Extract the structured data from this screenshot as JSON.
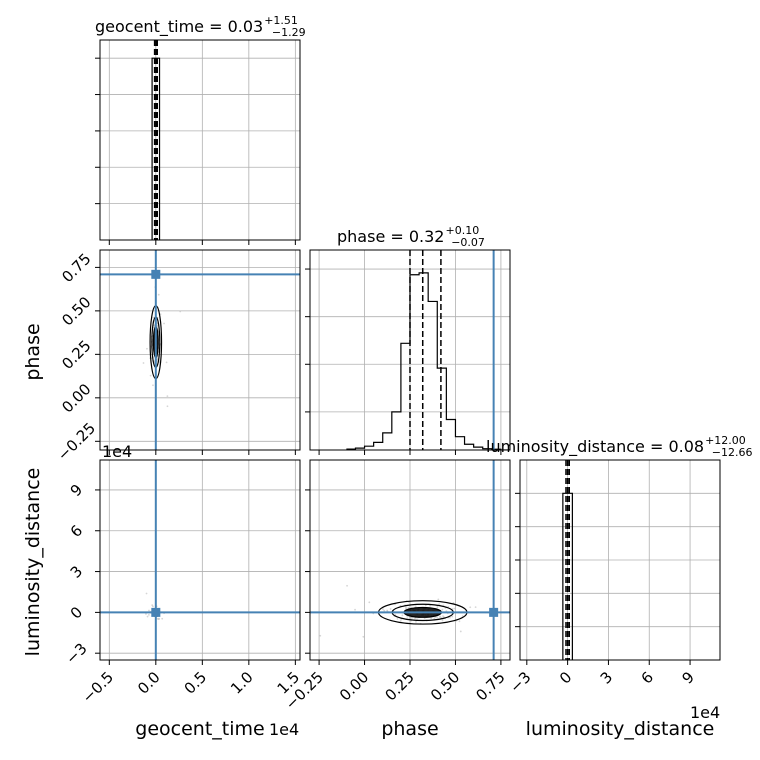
{
  "titles": {
    "geocent": {
      "name": "geocent_time = 0.03",
      "sup": "+1.51",
      "sub": "−1.29"
    },
    "phase": {
      "name": "phase = 0.32",
      "sup": "+0.10",
      "sub": "−0.07"
    },
    "lumdist": {
      "name": "luminosity_distance = 0.08",
      "sup": "+12.00",
      "sub": "−12.66"
    }
  },
  "axis_labels": {
    "geocent_time": "geocent_time",
    "phase": "phase",
    "luminosity_distance": "luminosity_distance"
  },
  "offsets": {
    "geocent_x": "1e4",
    "lumdist_y": "1e4",
    "lumdist_x": "1e4"
  },
  "ticks": {
    "geocent": [
      "−0.5",
      "0.0",
      "0.5",
      "1.0",
      "1.5"
    ],
    "phase": [
      "−0.25",
      "0.00",
      "0.25",
      "0.50",
      "0.75"
    ],
    "lumdist": [
      "−3",
      "0",
      "3",
      "6",
      "9"
    ]
  },
  "colors": {
    "truth": "#4682b4",
    "hist": "#000000",
    "grid": "#b0b0b0",
    "scatter": "#bbbbbb"
  },
  "chart_data": [
    {
      "type": "histogram",
      "panel": "geocent_time marginal",
      "title": "geocent_time = 0.03 (+1.51 / −1.29)",
      "xlabel": "geocent_time",
      "offset": "1e4",
      "xlim": [
        -0.6,
        1.55
      ],
      "bins": [
        [
          -0.04,
          0.04,
          1.0
        ]
      ],
      "quantiles": [
        -0.0129,
        0.0003,
        0.0154
      ]
    },
    {
      "type": "histogram",
      "panel": "phase marginal",
      "title": "phase = 0.32 (+0.10 / −0.07)",
      "xlabel": "phase",
      "xlim": [
        -0.3,
        0.8
      ],
      "bin_edges": [
        -0.1,
        -0.05,
        0.0,
        0.05,
        0.1,
        0.15,
        0.2,
        0.25,
        0.3,
        0.35,
        0.4,
        0.45,
        0.5,
        0.55,
        0.6,
        0.65,
        0.7,
        0.75,
        0.8
      ],
      "counts": [
        0.005,
        0.01,
        0.02,
        0.04,
        0.09,
        0.2,
        0.56,
        0.92,
        0.93,
        0.78,
        0.43,
        0.16,
        0.07,
        0.03,
        0.015,
        0.007,
        0.004,
        0.0
      ],
      "quantiles": [
        0.25,
        0.32,
        0.42
      ],
      "truth": 0.71
    },
    {
      "type": "histogram",
      "panel": "luminosity_distance marginal",
      "title": "luminosity_distance = 0.08 (+12.00 / −12.66)",
      "xlabel": "luminosity_distance",
      "offset": "1e4",
      "xlim": [
        -3.5,
        11.2
      ],
      "bins": [
        [
          -0.35,
          0.35,
          1.0
        ]
      ],
      "quantiles": [
        -0.12,
        0.0,
        0.12
      ]
    },
    {
      "type": "scatter",
      "panel": "phase vs geocent_time",
      "xlabel": "geocent_time",
      "ylabel": "phase",
      "xlim": [
        -0.6,
        1.55
      ],
      "ylim": [
        -0.3,
        0.85
      ],
      "center": [
        0.0,
        0.32
      ],
      "truth": [
        0.0,
        0.71
      ]
    },
    {
      "type": "scatter",
      "panel": "luminosity_distance vs geocent_time",
      "xlabel": "geocent_time",
      "ylabel": "luminosity_distance",
      "xlim": [
        -0.6,
        1.55
      ],
      "ylim": [
        -3.5,
        11.2
      ],
      "center": [
        0.0,
        0.0
      ],
      "truth": [
        0.0,
        0.0
      ]
    },
    {
      "type": "scatter",
      "panel": "luminosity_distance vs phase",
      "xlabel": "phase",
      "ylabel": "luminosity_distance",
      "xlim": [
        -0.3,
        0.8
      ],
      "ylim": [
        -3.5,
        11.2
      ],
      "center": [
        0.32,
        0.0
      ],
      "truth": [
        0.71,
        0.0
      ]
    }
  ]
}
